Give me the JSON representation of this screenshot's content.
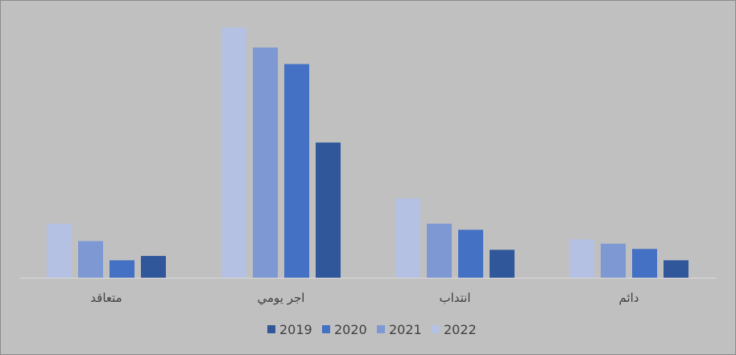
{
  "chart_data": {
    "type": "bar",
    "title": "",
    "xlabel": "",
    "ylabel": "",
    "categories": [
      "متعاقد",
      "اجر يومي",
      "انتداب",
      "دائم"
    ],
    "series": [
      {
        "name": "2022",
        "color": "#b4c1e2",
        "values": [
          62,
          287,
          91,
          44
        ]
      },
      {
        "name": "2021",
        "color": "#7e98d4",
        "values": [
          42,
          264,
          62,
          39
        ]
      },
      {
        "name": "2020",
        "color": "#4471c4",
        "values": [
          20,
          245,
          55,
          33
        ]
      },
      {
        "name": "2019",
        "color": "#2f579a",
        "values": [
          25,
          155,
          32,
          20
        ]
      }
    ],
    "legend_order": [
      "2019",
      "2020",
      "2021",
      "2022"
    ],
    "ylim": [
      0,
      300
    ],
    "grid": false,
    "legend_position": "bottom"
  }
}
